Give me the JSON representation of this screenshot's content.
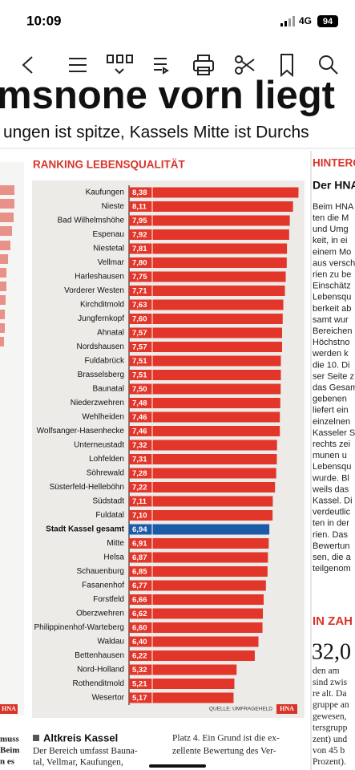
{
  "status": {
    "time": "10:09",
    "network": "4G",
    "battery": "94"
  },
  "headline": "msnone vorn liegt",
  "subheadline": "ungen ist spitze, Kassels Mitte ist Durchs",
  "chart_data": {
    "type": "bar",
    "orientation": "horizontal",
    "title": "RANKING LEBENSQUALITÄT",
    "source": "QUELLE: UMFRAGEHELD",
    "logo": "HNA",
    "categories": [
      "Kaufungen",
      "Nieste",
      "Bad Wilhelmshöhe",
      "Espenau",
      "Niestetal",
      "Vellmar",
      "Harleshausen",
      "Vorderer Westen",
      "Kirchditmold",
      "Jungfernkopf",
      "Ahnatal",
      "Nordshausen",
      "Fuldabrück",
      "Brasselsberg",
      "Baunatal",
      "Niederzwehren",
      "Wehlheiden",
      "Wolfsanger-Hasenhecke",
      "Unterneustadt",
      "Lohfelden",
      "Söhrewald",
      "Süsterfeld-Helleböhn",
      "Südstadt",
      "Fuldatal",
      "Stadt Kassel gesamt",
      "Mitte",
      "Helsa",
      "Schauenburg",
      "Fasanenhof",
      "Forstfeld",
      "Oberzwehren",
      "Philippinenhof-Warteberg",
      "Waldau",
      "Bettenhausen",
      "Nord-Holland",
      "Rothenditmold",
      "Wesertor"
    ],
    "values": [
      8.38,
      8.11,
      7.95,
      7.92,
      7.81,
      7.8,
      7.75,
      7.71,
      7.63,
      7.6,
      7.57,
      7.57,
      7.51,
      7.51,
      7.5,
      7.48,
      7.46,
      7.46,
      7.32,
      7.31,
      7.28,
      7.22,
      7.11,
      7.1,
      6.94,
      6.91,
      6.87,
      6.85,
      6.77,
      6.66,
      6.62,
      6.6,
      6.4,
      6.22,
      5.32,
      5.21,
      5.17
    ],
    "value_labels": [
      "8,38",
      "8,11",
      "7,95",
      "7,92",
      "7,81",
      "7,80",
      "7,75",
      "7,71",
      "7,63",
      "7,60",
      "7,57",
      "7,57",
      "7,51",
      "7,51",
      "7,50",
      "7,48",
      "7,46",
      "7,46",
      "7,32",
      "7,31",
      "7,28",
      "7,22",
      "7,11",
      "7,10",
      "6,94",
      "6,91",
      "6,87",
      "6,85",
      "6,77",
      "6,66",
      "6,62",
      "6,60",
      "6,40",
      "6,22",
      "5,32",
      "5,21",
      "5,17"
    ],
    "color": "#e2362a",
    "colors": [
      "#e2362a",
      "#e2362a",
      "#e2362a",
      "#e2362a",
      "#e2362a",
      "#e2362a",
      "#e2362a",
      "#e2362a",
      "#e2362a",
      "#e2362a",
      "#e2362a",
      "#e2362a",
      "#e2362a",
      "#e2362a",
      "#e2362a",
      "#e2362a",
      "#e2362a",
      "#e2362a",
      "#e2362a",
      "#e2362a",
      "#e2362a",
      "#e2362a",
      "#e2362a",
      "#e2362a",
      "#1d5aa8",
      "#e2362a",
      "#e2362a",
      "#e2362a",
      "#e2362a",
      "#e2362a",
      "#e2362a",
      "#e2362a",
      "#e2362a",
      "#e2362a",
      "#e2362a",
      "#e2362a",
      "#e2362a"
    ],
    "xlim": [
      0,
      8.6
    ]
  },
  "sidebar": {
    "kicker": "HINTERG",
    "heading": "Der HNA",
    "lines": [
      "Beim HNA",
      "ten die M",
      "und Umg",
      "keit, in ei",
      "einem Mo",
      "aus versch",
      "rien zu be",
      "Einschätz",
      "Lebensqu",
      "berkeit ab",
      "samt wur",
      "Bereichen",
      "Höchstno",
      "werden k",
      "die 10. Di",
      "ser Seite z",
      "das Gesam",
      "gebenen",
      "liefert ein",
      "einzelnen",
      "Kasseler S",
      "rechts zei",
      "munen u",
      "Lebensqu",
      "wurde. Bl",
      "weils das",
      "Kassel. Di",
      "verdeutlic",
      "ten in der",
      "rien. Das",
      "Bewertun",
      "sen, die a",
      "teilgenom"
    ],
    "facts_kicker": "IN ZAH",
    "facts_number": "32,0",
    "facts_lines": [
      "den am",
      "sind zwis",
      "re alt. Da",
      "gruppe an",
      "gewesen,",
      "tersgrupp",
      "zent) und",
      "von 45 b",
      "Prozent)."
    ]
  },
  "left_column": {
    "logo": "HNA",
    "lines": [
      "muss",
      "Beim",
      "n es"
    ]
  },
  "bottom": {
    "heading": "Altkreis Kassel",
    "col1": [
      "Der Bereich umfasst Bauna-",
      "tal, Vellmar, Kaufungen,"
    ],
    "col2": [
      "Platz 4. Ein Grund ist die ex-",
      "zellente Bewertung des Ver-"
    ]
  }
}
